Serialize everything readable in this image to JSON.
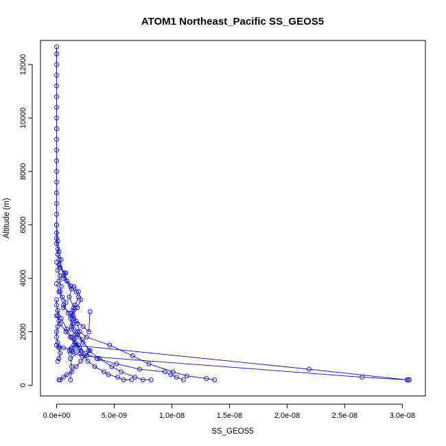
{
  "chart_data": {
    "type": "line",
    "title": "ATOM1 Northeast_Pacific SS_GEOS5",
    "xlabel": "SS_GEOS5",
    "ylabel": "Altitude (m)",
    "xlim": [
      -1.4e-09,
      3.2e-08
    ],
    "ylim": [
      -400,
      12900
    ],
    "x_ticks": [
      0,
      5e-09,
      1e-08,
      1.5e-08,
      2e-08,
      2.5e-08,
      3e-08
    ],
    "x_tick_labels": [
      "0.0e+00",
      "5.0e-09",
      "1.0e-08",
      "1.5e-08",
      "2.0e-08",
      "2.5e-08",
      "3.0e-08"
    ],
    "y_ticks": [
      0,
      2000,
      4000,
      6000,
      8000,
      10000,
      12000
    ],
    "y_tick_labels": [
      "0",
      "2000",
      "4000",
      "6000",
      "8000",
      "10000",
      "12000"
    ],
    "grid": false,
    "line_color": "#0000ff",
    "marker": "open-circle",
    "series": [
      {
        "x": [
          0,
          0,
          0,
          0,
          0,
          0,
          0,
          0,
          0,
          0,
          0,
          0,
          0,
          0,
          0,
          0,
          0,
          0,
          0,
          0,
          0,
          1e-10,
          1e-10,
          2e-10,
          2e-10,
          1e-10,
          3e-10,
          2e-10,
          4e-10,
          3e-10,
          5e-10,
          8e-10,
          6e-10,
          1.2e-09,
          1.5e-09,
          1.4e-09,
          1.3e-09,
          1.6e-09,
          1.7e-09,
          1.5e-09,
          1.6e-09,
          1.9e-09,
          2.1e-09,
          1.2e-09,
          1.3e-09,
          1.2e-09
        ],
        "y": [
          12660,
          12400,
          12000,
          11600,
          11200,
          10800,
          10400,
          10000,
          9600,
          9200,
          8800,
          8400,
          8000,
          7600,
          7200,
          6800,
          6400,
          6000,
          5700,
          5500,
          5300,
          5100,
          4900,
          4700,
          4500,
          4300,
          4100,
          3900,
          3700,
          3500,
          3300,
          3100,
          2900,
          2700,
          2500,
          2300,
          2100,
          1900,
          1800,
          1700,
          1600,
          1500,
          1300,
          1000,
          700,
          200
        ]
      },
      {
        "x": [
          0,
          1e-10,
          2e-10,
          4e-10,
          3e-10,
          8e-10,
          6e-10,
          1.3e-09,
          1.1e-09,
          1.5e-09,
          1.4e-09,
          1.8e-09,
          2e-09,
          2.6e-09,
          4.6e-09,
          6.6e-09,
          8e-09,
          1.01e-08,
          1.13e-08,
          1.3e-08,
          1.37e-08
        ],
        "y": [
          6000,
          5400,
          5000,
          4700,
          4400,
          4200,
          4000,
          3600,
          3300,
          2900,
          2600,
          2300,
          2000,
          1800,
          1500,
          1100,
          800,
          500,
          350,
          250,
          200
        ]
      },
      {
        "x": [
          0,
          2e-10,
          6e-10,
          1e-09,
          1.4e-09,
          1.8e-09,
          2.2e-09,
          2.8e-09,
          3.7e-09,
          4.8e-09,
          5.6e-09,
          6.8e-09,
          7.5e-09,
          8.2e-09
        ],
        "y": [
          3800,
          3500,
          3000,
          2700,
          2300,
          2000,
          1700,
          1300,
          1000,
          700,
          500,
          300,
          200,
          200
        ]
      },
      {
        "x": [
          1e-10,
          6e-10,
          1.2e-09,
          1.7e-09,
          1.9e-09,
          1.6e-09,
          1.4e-09,
          1.2e-09,
          1.3e-09,
          1.8e-09,
          2.3e-09,
          2.9e-09,
          2.6e-09,
          2.1e-09,
          1.7e-09,
          1.3e-09,
          9e-10,
          6e-10,
          3e-10,
          2e-10
        ],
        "y": [
          4900,
          4100,
          3700,
          3500,
          3300,
          3000,
          2800,
          2500,
          2200,
          1900,
          1600,
          1300,
          1100,
          900,
          700,
          500,
          400,
          300,
          200,
          200
        ]
      },
      {
        "x": [
          0,
          2e-10,
          6e-10,
          1.2e-09,
          1.6e-09,
          1.4e-09,
          1.2e-09,
          2.2e-09,
          2.65e-08,
          3.05e-08,
          3.06e-08,
          3.04e-08,
          2.19e-08,
          1.5e-09,
          1.3e-09,
          1.1e-09
        ],
        "y": [
          1500,
          1450,
          1400,
          1350,
          1300,
          1250,
          1200,
          1100,
          300,
          200,
          200,
          200,
          600,
          1500,
          1400,
          1300
        ]
      },
      {
        "x": [
          1e-10,
          4e-10,
          9e-10,
          1.3e-09,
          1.7e-09,
          2.1e-09,
          2.7e-09,
          3.3e-09,
          4.1e-09,
          4.5e-09,
          5.3e-09,
          5.8e-09,
          6.5e-09
        ],
        "y": [
          2800,
          2500,
          2100,
          1800,
          1500,
          1200,
          900,
          700,
          500,
          400,
          300,
          200,
          200
        ]
      },
      {
        "x": [
          0,
          3e-10,
          7e-10,
          9e-10,
          1.5e-09,
          1.9e-09,
          2.1e-09,
          1.8e-09,
          1.4e-09,
          1.7e-09,
          2.3e-09,
          2.8e-09,
          2.9e-09
        ],
        "y": [
          4600,
          4400,
          4200,
          3900,
          3700,
          3500,
          3200,
          2900,
          2600,
          2400,
          2200,
          2000,
          2750
        ]
      },
      {
        "x": [
          0,
          0,
          1e-10,
          1e-10,
          2e-10,
          1e-10,
          0,
          0,
          1e-10,
          2e-10,
          3e-10,
          2e-10,
          1e-10
        ],
        "y": [
          3200,
          3000,
          2800,
          2600,
          2400,
          2200,
          2000,
          1800,
          1600,
          1400,
          1200,
          1000,
          900
        ]
      },
      {
        "x": [
          0,
          3e-10,
          8e-10,
          1.2e-09,
          1.6e-09,
          2e-09,
          2.5e-09,
          3.5e-09,
          5.2e-09,
          7.2e-09,
          9.4e-09,
          9.9e-09,
          1.04e-08,
          1.1e-08
        ],
        "y": [
          2600,
          2300,
          2000,
          1800,
          1600,
          1400,
          1200,
          1000,
          800,
          600,
          500,
          400,
          300,
          200
        ]
      }
    ]
  }
}
